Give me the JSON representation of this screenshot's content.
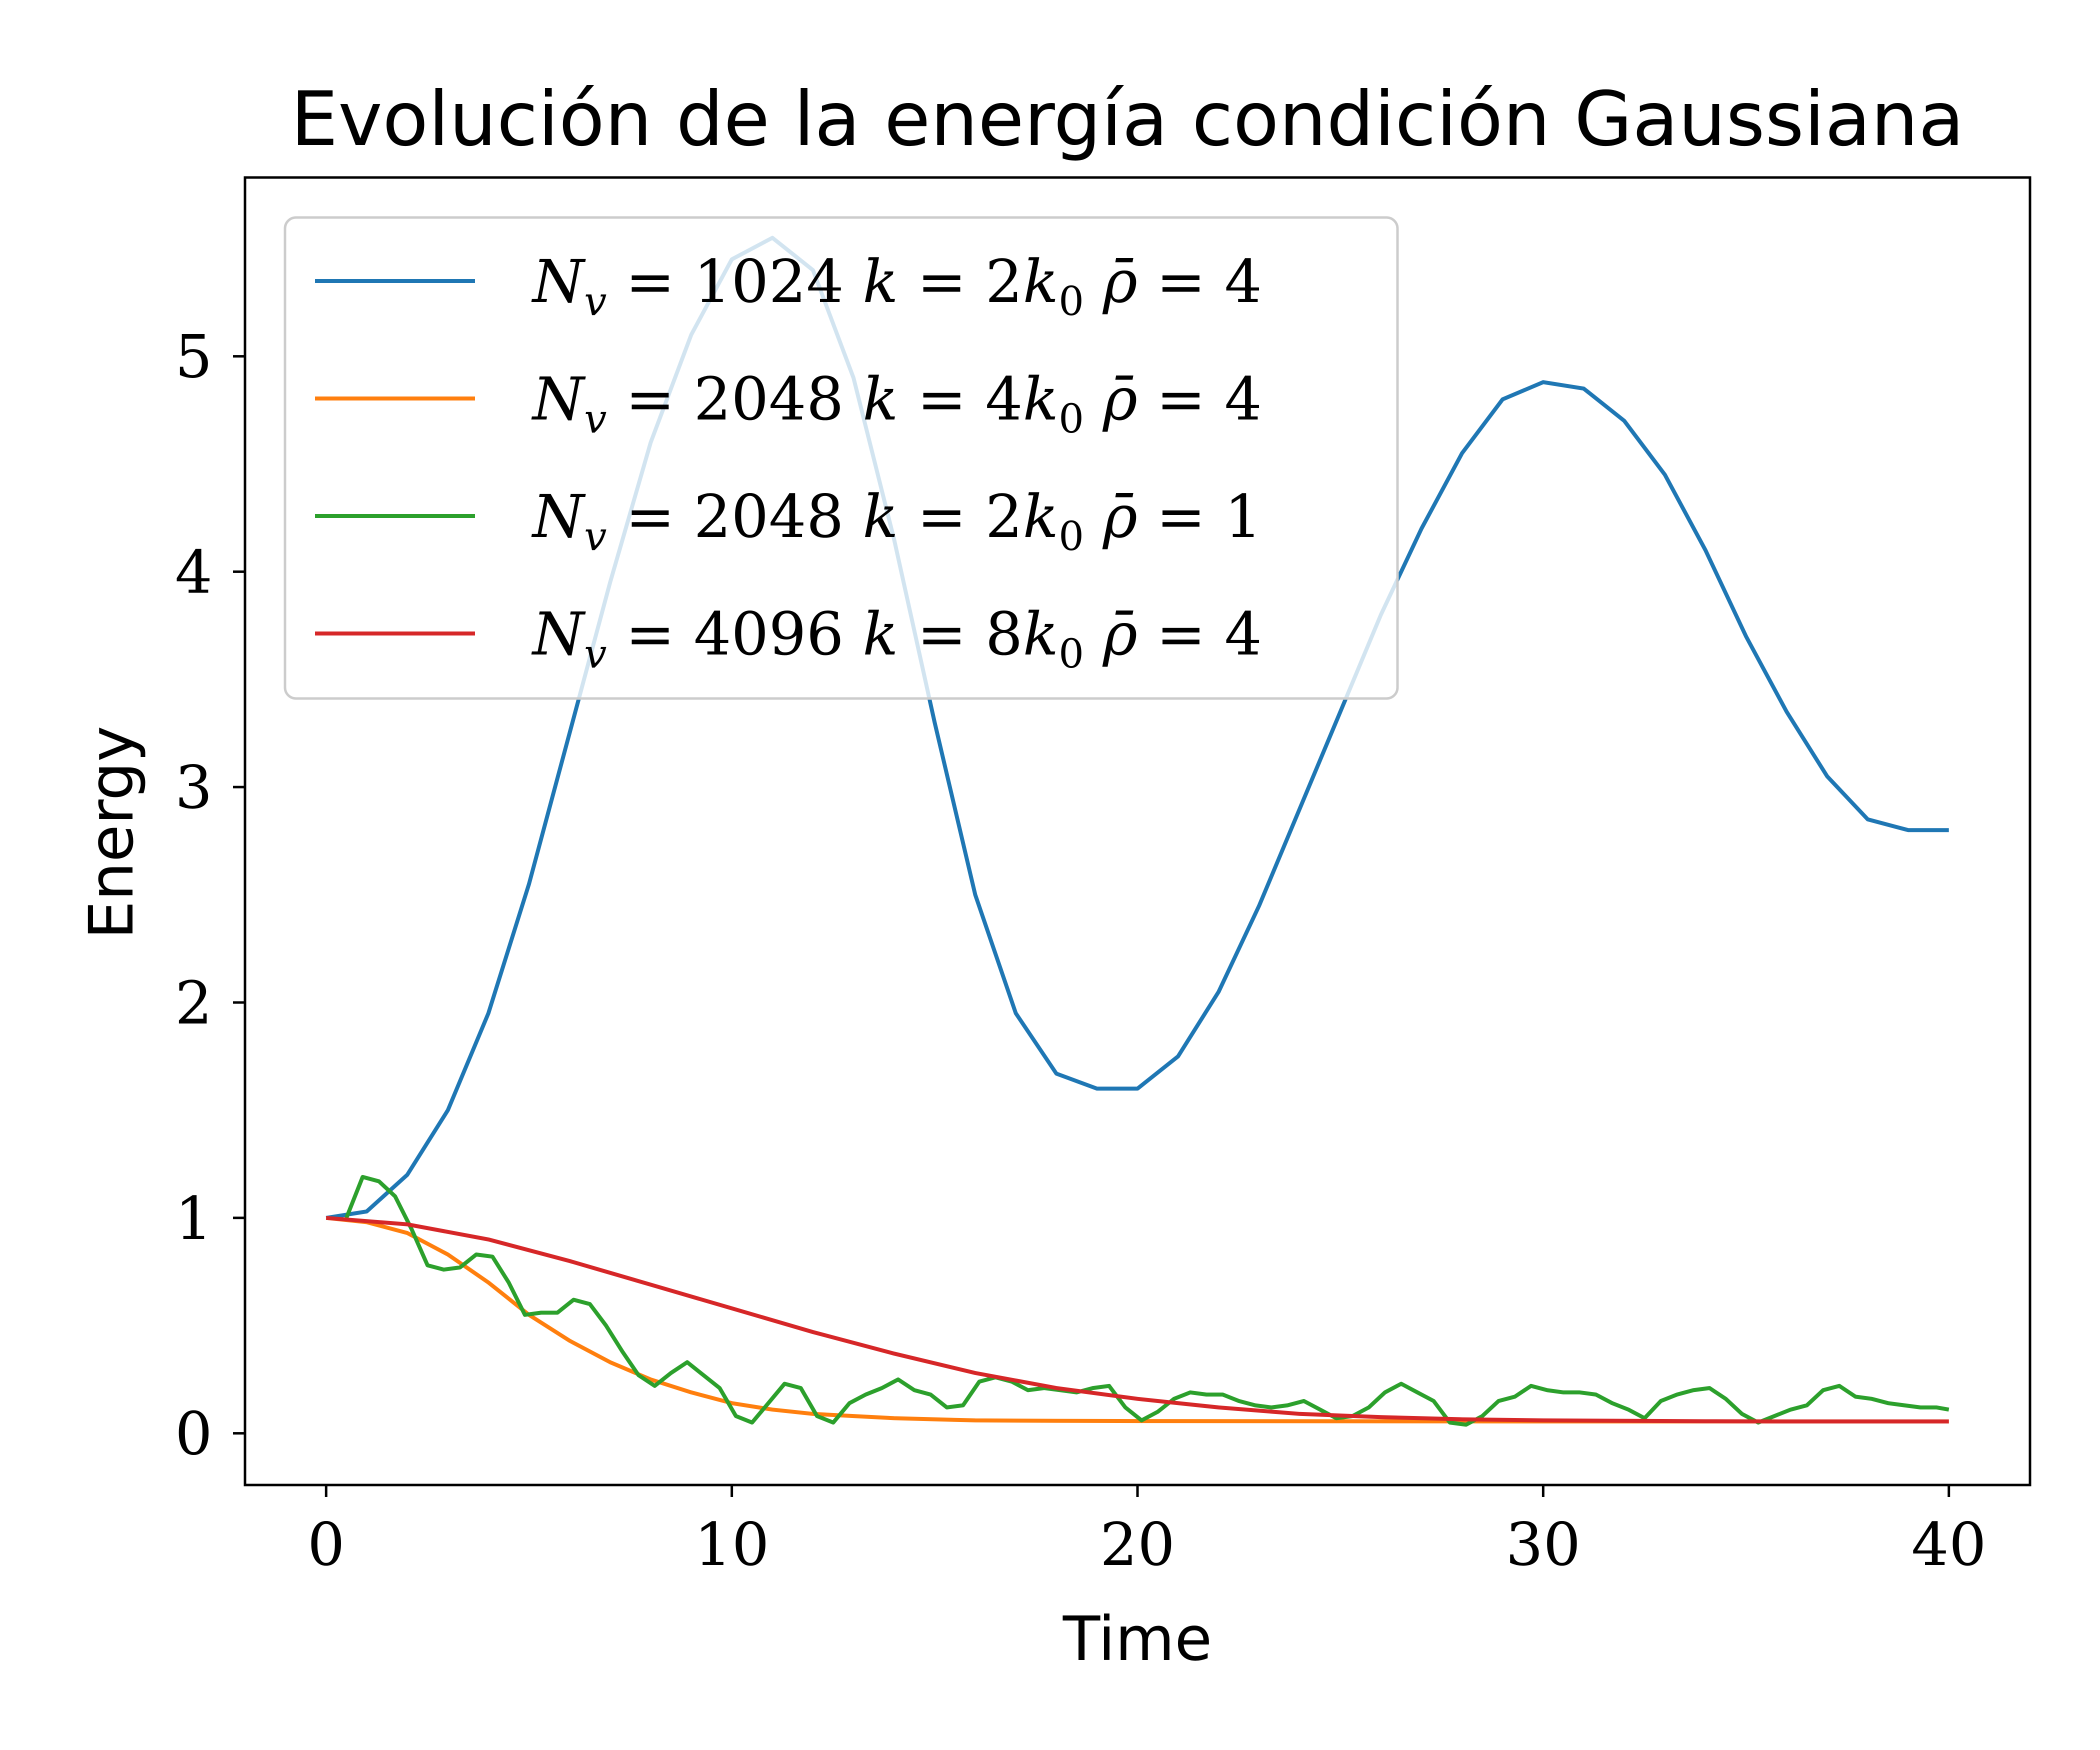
{
  "chart_data": {
    "type": "line",
    "title": "Evolución de la energía condición Gaussiana",
    "xlabel": "Time",
    "ylabel": "Energy",
    "xlim": [
      -2,
      42
    ],
    "ylim": [
      -0.24,
      5.83
    ],
    "xticks": [
      0,
      10,
      20,
      30,
      40
    ],
    "xtick_labels": [
      "0",
      "10",
      "20",
      "30",
      "40"
    ],
    "yticks": [
      0,
      1,
      2,
      3,
      4,
      5
    ],
    "ytick_labels": [
      "0",
      "1",
      "2",
      "3",
      "4",
      "5"
    ],
    "grid": false,
    "legend_position": "top-left",
    "series": [
      {
        "name": "N_v = 1024 k = 2k_0 ρ̄ = 4",
        "color": "#1f77b4",
        "x": [
          0,
          1,
          2,
          3,
          4,
          5,
          6,
          7,
          8,
          9,
          10,
          11,
          12,
          13,
          14,
          15,
          16,
          17,
          18,
          19,
          20,
          21,
          22,
          23,
          24,
          25,
          26,
          27,
          28,
          29,
          30,
          31,
          32,
          33,
          34,
          35,
          36,
          37,
          38,
          39,
          40
        ],
        "y": [
          1.0,
          1.03,
          1.2,
          1.5,
          1.95,
          2.55,
          3.25,
          3.95,
          4.6,
          5.1,
          5.45,
          5.55,
          5.4,
          4.9,
          4.15,
          3.3,
          2.5,
          1.95,
          1.67,
          1.6,
          1.6,
          1.75,
          2.05,
          2.45,
          2.9,
          3.35,
          3.8,
          4.2,
          4.55,
          4.8,
          4.88,
          4.85,
          4.7,
          4.45,
          4.1,
          3.7,
          3.35,
          3.05,
          2.85,
          2.8,
          2.8
        ]
      },
      {
        "name": "N_v = 2048 k = 4k_0 ρ̄ = 4",
        "color": "#ff7f0e",
        "x": [
          0,
          1,
          2,
          3,
          4,
          5,
          6,
          7,
          8,
          9,
          10,
          11,
          12,
          13,
          14,
          15,
          16,
          18,
          20,
          25,
          30,
          35,
          40
        ],
        "y": [
          1.0,
          0.98,
          0.93,
          0.83,
          0.7,
          0.55,
          0.43,
          0.33,
          0.25,
          0.19,
          0.14,
          0.11,
          0.09,
          0.08,
          0.07,
          0.065,
          0.06,
          0.058,
          0.057,
          0.056,
          0.055,
          0.055,
          0.055
        ]
      },
      {
        "name": "N_v = 2048 k = 2k_0 ρ̄ = 1",
        "color": "#2ca02c",
        "x": [
          0.5,
          0.9,
          1.3,
          1.7,
          2.1,
          2.5,
          2.9,
          3.3,
          3.7,
          4.1,
          4.5,
          4.9,
          5.3,
          5.7,
          6.1,
          6.5,
          6.9,
          7.3,
          7.7,
          8.1,
          8.5,
          8.9,
          9.3,
          9.7,
          10.1,
          10.5,
          10.9,
          11.3,
          11.7,
          12.1,
          12.5,
          12.9,
          13.3,
          13.7,
          14.1,
          14.5,
          14.9,
          15.3,
          15.7,
          16.1,
          16.5,
          16.9,
          17.3,
          17.7,
          18.1,
          18.5,
          18.9,
          19.3,
          19.7,
          20.1,
          20.5,
          20.9,
          21.3,
          21.7,
          22.1,
          22.5,
          22.9,
          23.3,
          23.7,
          24.1,
          24.5,
          24.9,
          25.3,
          25.7,
          26.1,
          26.5,
          26.9,
          27.3,
          27.7,
          28.1,
          28.5,
          28.9,
          29.3,
          29.7,
          30.1,
          30.5,
          30.9,
          31.3,
          31.7,
          32.1,
          32.5,
          32.9,
          33.3,
          33.7,
          34.1,
          34.5,
          34.9,
          35.3,
          35.7,
          36.1,
          36.5,
          36.9,
          37.3,
          37.7,
          38.1,
          38.5,
          38.9,
          39.3,
          39.7,
          40.0
        ],
        "y": [
          1.0,
          1.19,
          1.17,
          1.1,
          0.95,
          0.78,
          0.76,
          0.77,
          0.83,
          0.82,
          0.7,
          0.55,
          0.56,
          0.56,
          0.62,
          0.6,
          0.5,
          0.38,
          0.27,
          0.22,
          0.28,
          0.33,
          0.27,
          0.21,
          0.08,
          0.05,
          0.14,
          0.23,
          0.21,
          0.08,
          0.05,
          0.14,
          0.18,
          0.21,
          0.25,
          0.2,
          0.18,
          0.12,
          0.13,
          0.24,
          0.26,
          0.24,
          0.2,
          0.21,
          0.2,
          0.19,
          0.21,
          0.22,
          0.12,
          0.06,
          0.1,
          0.16,
          0.19,
          0.18,
          0.18,
          0.15,
          0.13,
          0.12,
          0.13,
          0.15,
          0.11,
          0.07,
          0.08,
          0.12,
          0.19,
          0.23,
          0.19,
          0.15,
          0.05,
          0.04,
          0.08,
          0.15,
          0.17,
          0.22,
          0.2,
          0.19,
          0.19,
          0.18,
          0.14,
          0.11,
          0.07,
          0.15,
          0.18,
          0.2,
          0.21,
          0.16,
          0.09,
          0.05,
          0.08,
          0.11,
          0.13,
          0.2,
          0.22,
          0.17,
          0.16,
          0.14,
          0.13,
          0.12,
          0.12,
          0.11
        ]
      },
      {
        "name": "N_v = 4096 k = 8k_0 ρ̄ = 4",
        "color": "#d62728",
        "x": [
          0,
          2,
          4,
          6,
          8,
          10,
          12,
          14,
          16,
          18,
          20,
          22,
          24,
          26,
          28,
          30,
          32,
          34,
          36,
          38,
          40
        ],
        "y": [
          1.0,
          0.97,
          0.9,
          0.8,
          0.69,
          0.58,
          0.47,
          0.37,
          0.28,
          0.21,
          0.16,
          0.12,
          0.09,
          0.075,
          0.065,
          0.06,
          0.058,
          0.056,
          0.055,
          0.055,
          0.055
        ]
      }
    ]
  },
  "legend": {
    "items": [
      {
        "n": "1024",
        "k": "2",
        "rho": "4"
      },
      {
        "n": "2048",
        "k": "4",
        "rho": "4"
      },
      {
        "n": "2048",
        "k": "2",
        "rho": "1"
      },
      {
        "n": "4096",
        "k": "8",
        "rho": "4"
      }
    ]
  }
}
